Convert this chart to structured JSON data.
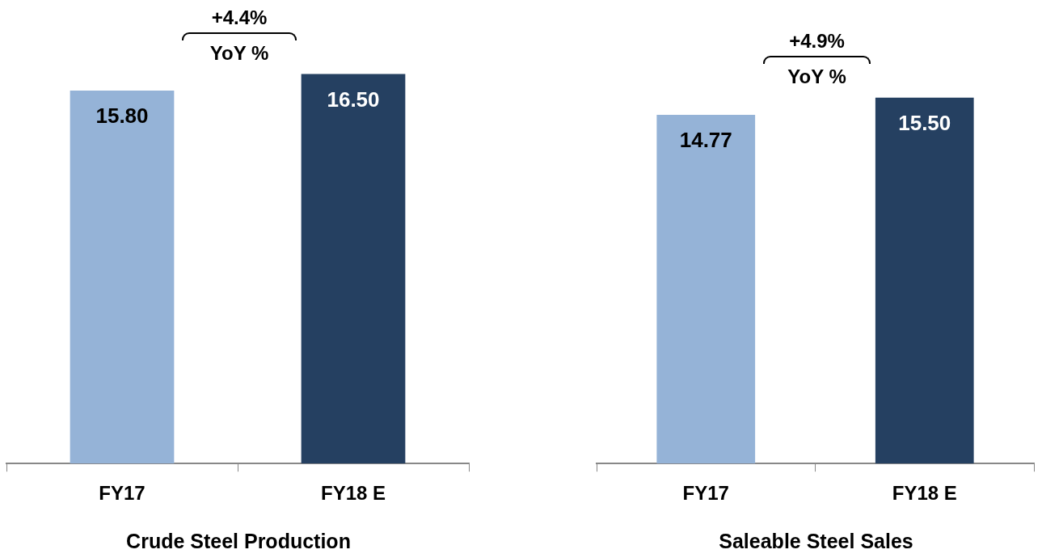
{
  "chart_data": [
    {
      "type": "bar",
      "xlabel": "Crude Steel Production",
      "categories": [
        "FY17",
        "FY18 E"
      ],
      "values": [
        15.8,
        16.5
      ],
      "value_labels": [
        "15.80",
        "16.50"
      ],
      "colors": [
        "#95b3d7",
        "#254061"
      ],
      "annotations": [
        "+4.4%",
        "YoY %"
      ]
    },
    {
      "type": "bar",
      "xlabel": "Saleable Steel Sales",
      "categories": [
        "FY17",
        "FY18 E"
      ],
      "values": [
        14.77,
        15.5
      ],
      "value_labels": [
        "14.77",
        "15.50"
      ],
      "colors": [
        "#95b3d7",
        "#254061"
      ],
      "annotations": [
        "+4.9%",
        "YoY %"
      ]
    }
  ]
}
